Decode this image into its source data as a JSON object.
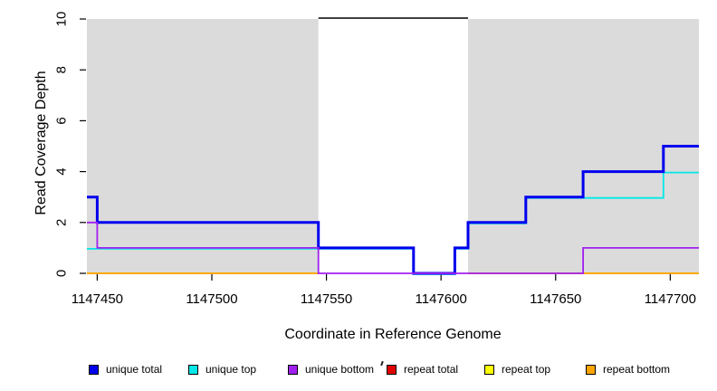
{
  "chart_data": {
    "type": "line",
    "subtype": "step",
    "title": "",
    "xlabel": "Coordinate in Reference Genome",
    "ylabel": "Read Coverage Depth",
    "xlim": [
      1147445.5,
      1147712.5
    ],
    "ylim": [
      0,
      10
    ],
    "grid": false,
    "x_ticks": [
      1147450,
      1147500,
      1147550,
      1147600,
      1147650,
      1147700
    ],
    "x_tick_labels": [
      "1147450",
      "1147500",
      "1147550",
      "1147600",
      "1147650",
      "1147700"
    ],
    "y_ticks": [
      0,
      2,
      4,
      6,
      8,
      10
    ],
    "y_tick_labels": [
      "0",
      "2",
      "4",
      "6",
      "8",
      "10"
    ],
    "shaded_regions": [
      {
        "x1": 1147445.5,
        "x2": 1147546.5,
        "color": "#DBDBDB",
        "meaning": "repeat region"
      },
      {
        "x1": 1147611.8,
        "x2": 1147712.5,
        "color": "#DBDBDB",
        "meaning": "repeat region"
      }
    ],
    "top_line": {
      "x1": 1147546.5,
      "x2": 1147611.8,
      "y": 10,
      "color": "#000000"
    },
    "draw_order": [
      "repeat total",
      "repeat top",
      "repeat bottom",
      "unique top",
      "unique total",
      "unique bottom"
    ],
    "series": [
      {
        "name": "unique total",
        "color": "#0000EE",
        "width": 3,
        "segments": [
          [
            [
              1147445.5,
              3
            ],
            [
              1147450,
              2
            ],
            [
              1147546.5,
              1
            ],
            [
              1147588,
              0
            ],
            [
              1147606,
              1
            ],
            [
              1147611.8,
              2
            ],
            [
              1147637,
              3
            ],
            [
              1147662,
              4
            ],
            [
              1147697,
              5
            ],
            [
              1147712.5,
              5
            ]
          ]
        ]
      },
      {
        "name": "unique top",
        "color": "#00E8E8",
        "width": 1.8,
        "dy": 1,
        "segments": [
          [
            [
              1147445.5,
              1
            ],
            [
              1147588,
              0
            ],
            [
              1147606,
              1
            ],
            [
              1147611.8,
              2
            ],
            [
              1147637,
              3
            ],
            [
              1147697,
              4
            ],
            [
              1147712.5,
              4
            ]
          ]
        ]
      },
      {
        "name": "unique bottom",
        "color": "#A020F0",
        "width": 1.8,
        "segments": [
          [
            [
              1147445.5,
              2
            ],
            [
              1147450,
              1
            ],
            [
              1147546.5,
              0
            ],
            [
              1147662,
              1
            ],
            [
              1147712.5,
              1
            ]
          ]
        ]
      },
      {
        "name": "repeat total",
        "color": "#E00000",
        "width": 1.8,
        "segments": [
          [
            [
              1147445.5,
              0
            ],
            [
              1147546.5,
              0
            ]
          ],
          [
            [
              1147611.8,
              0
            ],
            [
              1147712.5,
              0
            ]
          ]
        ]
      },
      {
        "name": "repeat top",
        "color": "#FFFF00",
        "width": 1.8,
        "segments": [
          [
            [
              1147445.5,
              0
            ],
            [
              1147546.5,
              0
            ]
          ],
          [
            [
              1147611.8,
              0
            ],
            [
              1147712.5,
              0
            ]
          ]
        ]
      },
      {
        "name": "repeat bottom",
        "color": "#FFA500",
        "width": 1.8,
        "segments": [
          [
            [
              1147445.5,
              0
            ],
            [
              1147546.5,
              0
            ]
          ],
          [
            [
              1147611.8,
              0
            ],
            [
              1147712.5,
              0
            ]
          ]
        ]
      }
    ]
  },
  "legend": {
    "items": [
      {
        "label": "unique total",
        "color": "#0000EE"
      },
      {
        "label": "unique top",
        "color": "#00E8E8"
      },
      {
        "label": "unique bottom",
        "color": "#A020F0"
      },
      {
        "label": "repeat total",
        "color": "#E00000"
      },
      {
        "label": "repeat top",
        "color": "#FFFF00"
      },
      {
        "label": "repeat bottom",
        "color": "#FFA500"
      }
    ]
  }
}
